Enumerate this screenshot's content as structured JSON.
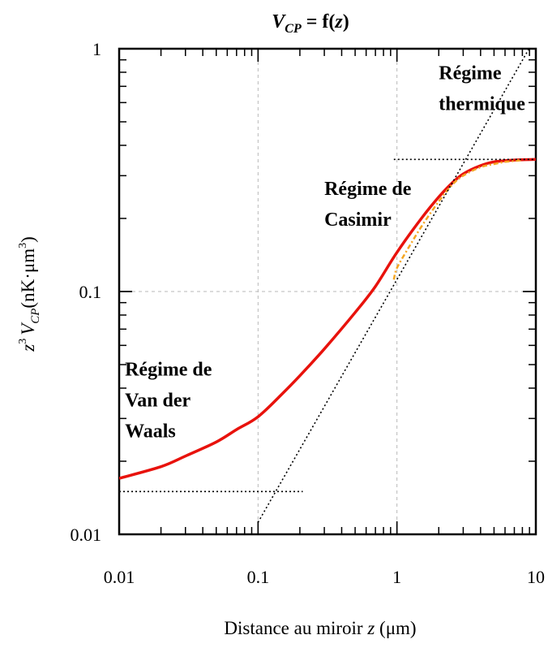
{
  "chart_data": {
    "type": "line",
    "title": "V",
    "title_sub": "CP",
    "title_rest": " = f(",
    "title_var": "z",
    "title_close": ")",
    "xlabel": "Distance au miroir ",
    "xlabel_var": "z",
    "xlabel_unit": " (μm)",
    "ylabel_z": "z",
    "ylabel_sup1": "3",
    "ylabel_v": "V",
    "ylabel_sub": "CP",
    "ylabel_unit": "(nK·μm",
    "ylabel_sup2": "3",
    "ylabel_close": ")",
    "x_scale": "log",
    "y_scale": "log",
    "xlim": [
      0.01,
      10
    ],
    "ylim": [
      0.01,
      1
    ],
    "x_ticks": [
      {
        "value": 0.01,
        "label": "0.01"
      },
      {
        "value": 0.1,
        "label": "0.1"
      },
      {
        "value": 1,
        "label": "1"
      },
      {
        "value": 10,
        "label": "10"
      }
    ],
    "y_ticks": [
      {
        "value": 0.01,
        "label": "0.01"
      },
      {
        "value": 0.1,
        "label": "0.1"
      },
      {
        "value": 1,
        "label": "1"
      }
    ],
    "grid": "dashed at decades",
    "series": [
      {
        "style": "solid",
        "color": "#e8120c",
        "x": [
          0.01,
          0.02,
          0.03,
          0.05,
          0.07,
          0.1,
          0.15,
          0.2,
          0.3,
          0.5,
          0.7,
          1.0,
          1.5,
          2.0,
          2.5,
          3.0,
          4.0,
          5.0,
          7.0,
          10.0
        ],
        "y": [
          0.017,
          0.019,
          0.021,
          0.024,
          0.027,
          0.0305,
          0.038,
          0.045,
          0.058,
          0.082,
          0.105,
          0.145,
          0.2,
          0.245,
          0.28,
          0.305,
          0.33,
          0.342,
          0.348,
          0.35
        ]
      },
      {
        "style": "dash-dot",
        "color": "#f5a623",
        "x": [
          0.95,
          1.0,
          1.2,
          1.5,
          2.0,
          2.5,
          3.0,
          4.0,
          5.0,
          6.0,
          7.0,
          8.0
        ],
        "y": [
          0.112,
          0.125,
          0.15,
          0.185,
          0.235,
          0.275,
          0.3,
          0.325,
          0.335,
          0.342,
          0.345,
          0.348
        ]
      },
      {
        "style": "dotted",
        "color": "#000000",
        "x": [
          0.1,
          10
        ],
        "y": [
          0.0112,
          1.12
        ]
      },
      {
        "style": "dotted",
        "color": "#000000",
        "x": [
          0.01,
          0.21
        ],
        "y": [
          0.015,
          0.015
        ]
      },
      {
        "style": "dotted",
        "color": "#000000",
        "x": [
          0.95,
          10
        ],
        "y": [
          0.35,
          0.35
        ]
      }
    ],
    "annotations": [
      {
        "lines": [
          "Régime",
          "thermique"
        ],
        "x": 2.0,
        "y": 0.75
      },
      {
        "lines": [
          "Régime de",
          "Casimir"
        ],
        "x": 0.3,
        "y": 0.25
      },
      {
        "lines": [
          "Régime de",
          "Van der",
          "Waals"
        ],
        "x": 0.011,
        "y": 0.045
      }
    ]
  }
}
